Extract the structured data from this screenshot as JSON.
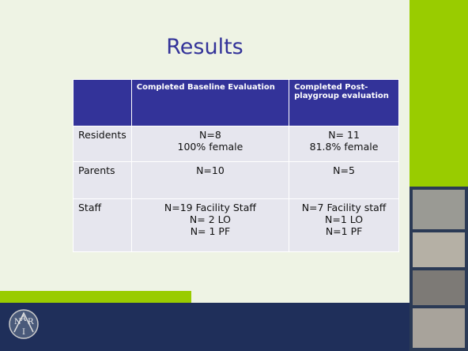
{
  "title": "Results",
  "table": {
    "header": [
      "Completed Baseline Evaluation",
      "Completed Post-playgroup evaluation"
    ],
    "rows": [
      {
        "label": "Residents",
        "cells": [
          [
            "N=8",
            "100% female"
          ],
          [
            "N= 11",
            "81.8% female"
          ]
        ]
      },
      {
        "label": "Parents",
        "cells": [
          [
            "N=10"
          ],
          [
            "N=5"
          ]
        ]
      },
      {
        "label": "Staff",
        "cells": [
          [
            "N=19 Facility Staff",
            "N= 2 LO",
            "N= 1 PF"
          ],
          [
            "N=7 Facility staff",
            "N=1 LO",
            "N=1 PF"
          ]
        ]
      }
    ]
  },
  "logo": [
    "N",
    "A",
    "R",
    "I"
  ]
}
